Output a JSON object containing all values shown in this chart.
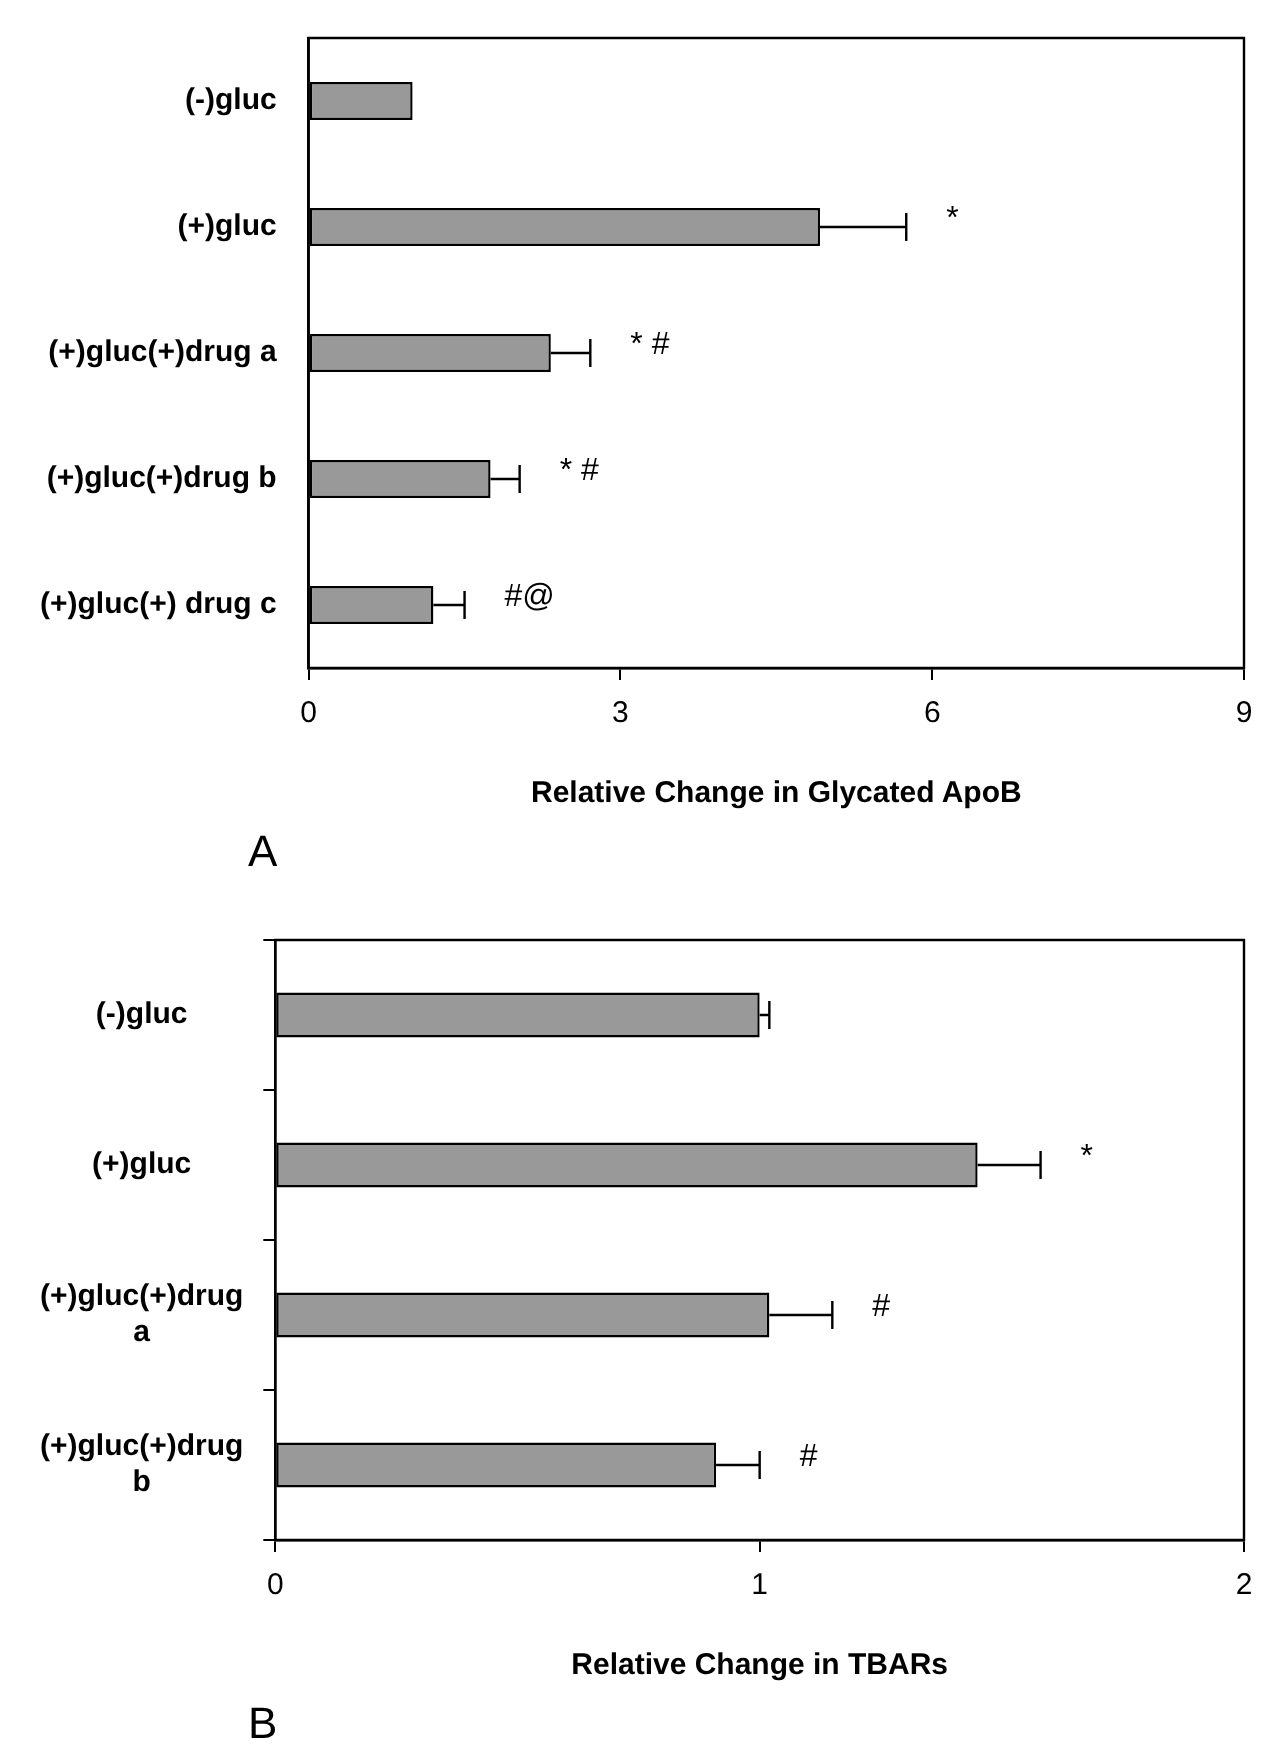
{
  "chart_data": [
    {
      "type": "bar",
      "orientation": "horizontal",
      "xlabel": "Relative Change in Glycated ApoB",
      "categories": [
        "(-)gluc",
        "(+)gluc",
        "(+)gluc(+)drug a",
        "(+)gluc(+)drug b",
        "(+)gluc(+) drug c"
      ],
      "values": [
        1.0,
        4.92,
        2.33,
        1.75,
        1.2
      ],
      "color": "#999999",
      "errors": [
        null,
        [
          4.92,
          5.75
        ],
        [
          2.33,
          2.71
        ],
        [
          1.75,
          2.03
        ],
        [
          1.2,
          1.5
        ]
      ],
      "xlim": [
        0,
        9
      ],
      "xticks": [
        0,
        3,
        6,
        9
      ],
      "annotations": [
        "*",
        "* #",
        "* #",
        "#@",
        "A"
      ]
    },
    {
      "type": "bar",
      "orientation": "horizontal",
      "xlabel": "Relative Change in TBARs",
      "categories": [
        "(-)gluc",
        "(+)gluc",
        "(+)gluc(+)drug a",
        "(+)gluc(+)drug b"
      ],
      "values": [
        1.0,
        1.45,
        1.02,
        0.91
      ],
      "color": "#999999",
      "errors": [
        [
          1.0,
          1.02
        ],
        [
          1.45,
          1.58
        ],
        [
          1.02,
          1.15
        ],
        [
          0.91,
          1.0
        ]
      ],
      "xlim": [
        0,
        2
      ],
      "xticks": [
        0,
        1,
        2
      ],
      "annotations": [
        "*",
        "#",
        "#",
        "B"
      ]
    }
  ]
}
